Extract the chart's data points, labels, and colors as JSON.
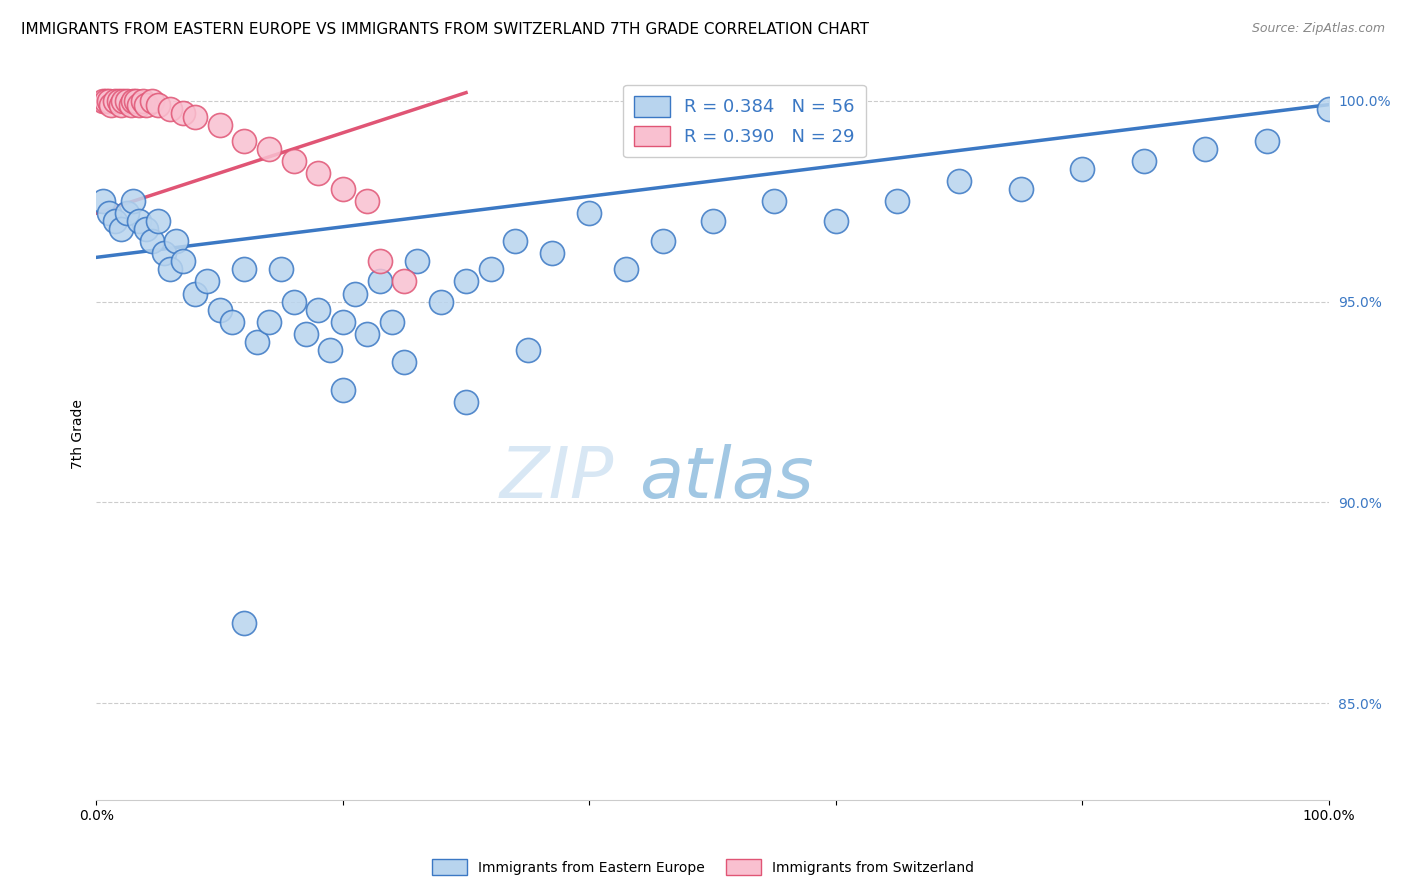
{
  "title": "IMMIGRANTS FROM EASTERN EUROPE VS IMMIGRANTS FROM SWITZERLAND 7TH GRADE CORRELATION CHART",
  "source": "Source: ZipAtlas.com",
  "ylabel": "7th Grade",
  "series1_label": "Immigrants from Eastern Europe",
  "series2_label": "Immigrants from Switzerland",
  "R1": 0.384,
  "N1": 56,
  "R2": 0.39,
  "N2": 29,
  "series1_color": "#b8d4ee",
  "series1_line_color": "#3b78c4",
  "series2_color": "#f9c0d0",
  "series2_line_color": "#e05575",
  "background_color": "#ffffff",
  "watermark_zip": "ZIP",
  "watermark_atlas": "atlas",
  "xlim": [
    0.0,
    1.0
  ],
  "ylim": [
    0.826,
    1.008
  ],
  "yticks": [
    0.85,
    0.9,
    0.95,
    1.0
  ],
  "ytick_labels": [
    "85.0%",
    "90.0%",
    "95.0%",
    "100.0%"
  ],
  "xticks": [
    0.0,
    0.2,
    0.4,
    0.6,
    0.8,
    1.0
  ],
  "xtick_labels": [
    "0.0%",
    "",
    "",
    "",
    "",
    "100.0%"
  ],
  "blue_x": [
    0.005,
    0.01,
    0.015,
    0.02,
    0.025,
    0.03,
    0.035,
    0.04,
    0.045,
    0.05,
    0.055,
    0.06,
    0.065,
    0.07,
    0.08,
    0.09,
    0.1,
    0.11,
    0.12,
    0.13,
    0.14,
    0.15,
    0.16,
    0.17,
    0.18,
    0.19,
    0.2,
    0.21,
    0.22,
    0.23,
    0.24,
    0.26,
    0.28,
    0.3,
    0.32,
    0.34,
    0.37,
    0.4,
    0.43,
    0.46,
    0.5,
    0.55,
    0.6,
    0.65,
    0.7,
    0.75,
    0.8,
    0.85,
    0.9,
    0.95,
    0.12,
    0.2,
    0.25,
    0.3,
    0.35,
    1.0
  ],
  "blue_y": [
    0.975,
    0.972,
    0.97,
    0.968,
    0.972,
    0.975,
    0.97,
    0.968,
    0.965,
    0.97,
    0.962,
    0.958,
    0.965,
    0.96,
    0.952,
    0.955,
    0.948,
    0.945,
    0.958,
    0.94,
    0.945,
    0.958,
    0.95,
    0.942,
    0.948,
    0.938,
    0.945,
    0.952,
    0.942,
    0.955,
    0.945,
    0.96,
    0.95,
    0.955,
    0.958,
    0.965,
    0.962,
    0.972,
    0.958,
    0.965,
    0.97,
    0.975,
    0.97,
    0.975,
    0.98,
    0.978,
    0.983,
    0.985,
    0.988,
    0.99,
    0.87,
    0.928,
    0.935,
    0.925,
    0.938,
    0.998
  ],
  "pink_x": [
    0.005,
    0.008,
    0.01,
    0.012,
    0.015,
    0.018,
    0.02,
    0.022,
    0.025,
    0.028,
    0.03,
    0.032,
    0.035,
    0.038,
    0.04,
    0.045,
    0.05,
    0.06,
    0.07,
    0.08,
    0.1,
    0.12,
    0.14,
    0.16,
    0.18,
    0.2,
    0.22,
    0.23,
    0.25
  ],
  "pink_y": [
    1.0,
    1.0,
    1.0,
    0.999,
    1.0,
    1.0,
    0.999,
    1.0,
    1.0,
    0.999,
    1.0,
    1.0,
    0.999,
    1.0,
    0.999,
    1.0,
    0.999,
    0.998,
    0.997,
    0.996,
    0.994,
    0.99,
    0.988,
    0.985,
    0.982,
    0.978,
    0.975,
    0.96,
    0.955
  ],
  "blue_trend_x0": 0.0,
  "blue_trend_y0": 0.961,
  "blue_trend_x1": 1.0,
  "blue_trend_y1": 0.999,
  "pink_trend_x0": 0.0,
  "pink_trend_y0": 0.972,
  "pink_trend_x1": 0.3,
  "pink_trend_y1": 1.002,
  "title_fontsize": 11,
  "source_fontsize": 9,
  "axis_label_fontsize": 9,
  "tick_fontsize": 10,
  "legend_fontsize": 13,
  "watermark_fontsize": 52
}
